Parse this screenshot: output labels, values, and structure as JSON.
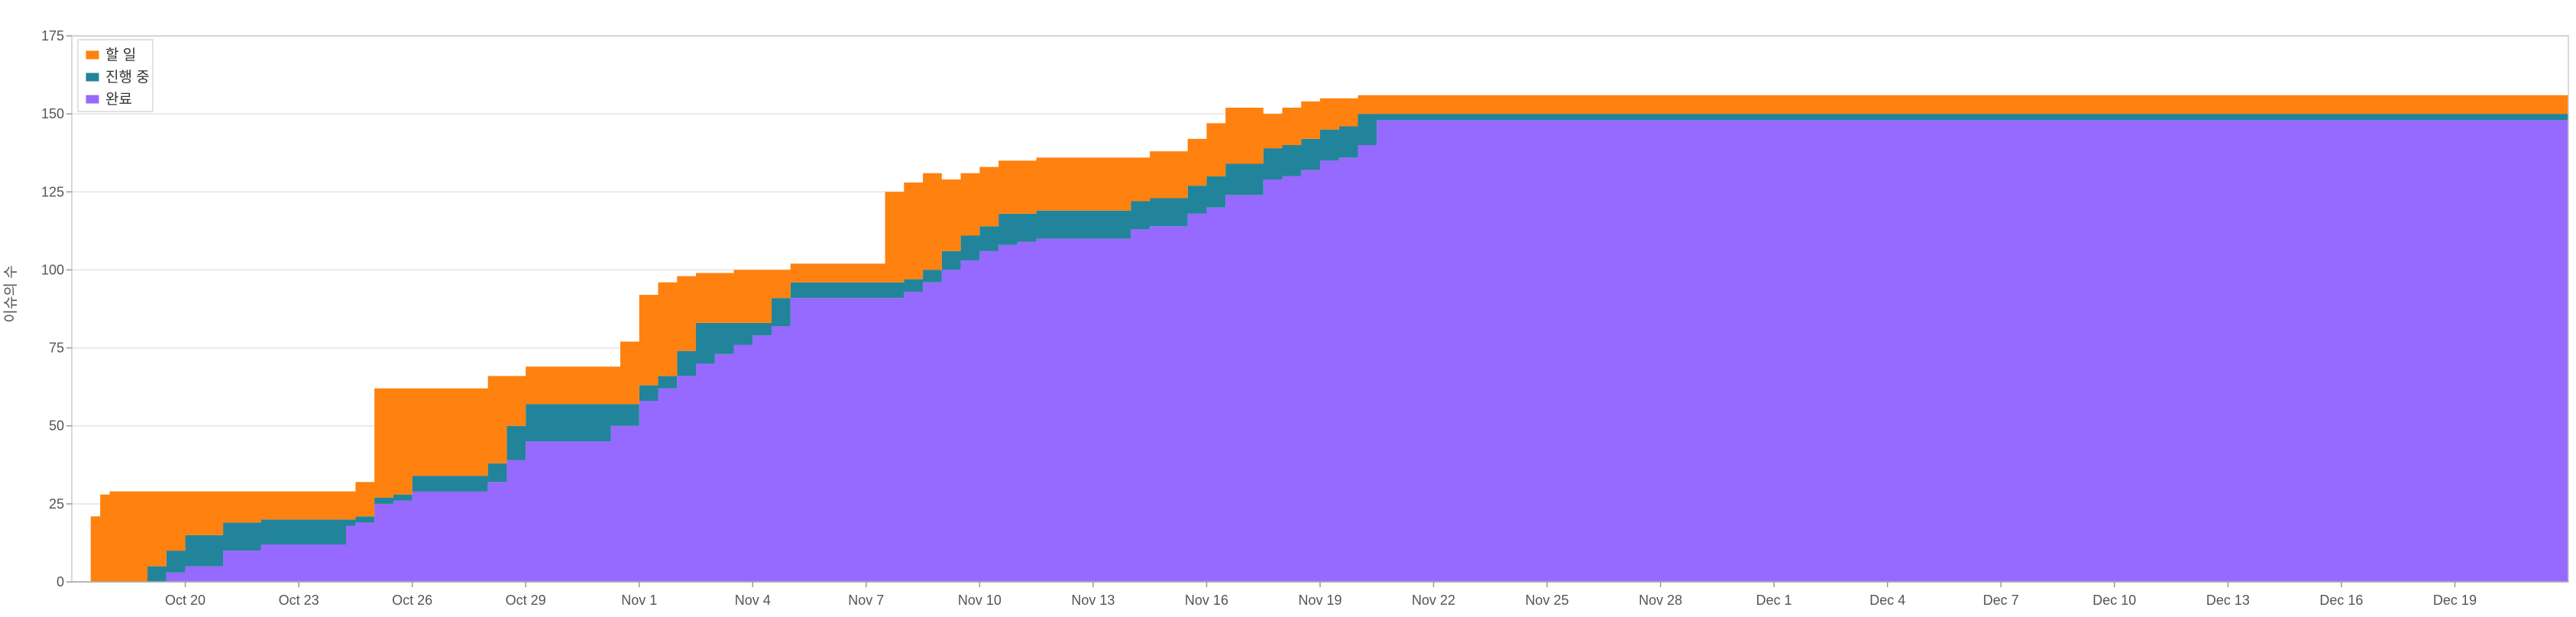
{
  "chart_data": {
    "type": "area",
    "stacked": true,
    "step": true,
    "ylabel": "이슈의 수",
    "ylim": [
      0,
      175
    ],
    "yticks": [
      0,
      25,
      50,
      75,
      100,
      125,
      150,
      175
    ],
    "xlim": [
      "2023-10-17",
      "2023-12-22"
    ],
    "xticks": [
      {
        "date": "2023-10-20",
        "label": "Oct 20"
      },
      {
        "date": "2023-10-23",
        "label": "Oct 23"
      },
      {
        "date": "2023-10-26",
        "label": "Oct 26"
      },
      {
        "date": "2023-10-29",
        "label": "Oct 29"
      },
      {
        "date": "2023-11-01",
        "label": "Nov 1"
      },
      {
        "date": "2023-11-04",
        "label": "Nov 4"
      },
      {
        "date": "2023-11-07",
        "label": "Nov 7"
      },
      {
        "date": "2023-11-10",
        "label": "Nov 10"
      },
      {
        "date": "2023-11-13",
        "label": "Nov 13"
      },
      {
        "date": "2023-11-16",
        "label": "Nov 16"
      },
      {
        "date": "2023-11-19",
        "label": "Nov 19"
      },
      {
        "date": "2023-11-22",
        "label": "Nov 22"
      },
      {
        "date": "2023-11-25",
        "label": "Nov 25"
      },
      {
        "date": "2023-11-28",
        "label": "Nov 28"
      },
      {
        "date": "2023-12-01",
        "label": "Dec 1"
      },
      {
        "date": "2023-12-04",
        "label": "Dec 4"
      },
      {
        "date": "2023-12-07",
        "label": "Dec 7"
      },
      {
        "date": "2023-12-10",
        "label": "Dec 10"
      },
      {
        "date": "2023-12-13",
        "label": "Dec 13"
      },
      {
        "date": "2023-12-16",
        "label": "Dec 16"
      },
      {
        "date": "2023-12-19",
        "label": "Dec 19"
      }
    ],
    "grid": true,
    "legend_position": "top-left",
    "x": [
      "2023-10-17T12:00",
      "2023-10-17T18:00",
      "2023-10-18T00:00",
      "2023-10-18T12:00",
      "2023-10-19T00:00",
      "2023-10-19T12:00",
      "2023-10-20T00:00",
      "2023-10-21T00:00",
      "2023-10-22T00:00",
      "2023-10-24T06:00",
      "2023-10-24T12:00",
      "2023-10-25T00:00",
      "2023-10-25T12:00",
      "2023-10-26T00:00",
      "2023-10-27T12:00",
      "2023-10-28T00:00",
      "2023-10-28T12:00",
      "2023-10-29T00:00",
      "2023-10-31T06:00",
      "2023-10-31T12:00",
      "2023-11-01T00:00",
      "2023-11-01T12:00",
      "2023-11-02T00:00",
      "2023-11-02T12:00",
      "2023-11-03T00:00",
      "2023-11-03T12:00",
      "2023-11-04T00:00",
      "2023-11-04T12:00",
      "2023-11-05T00:00",
      "2023-11-07T12:00",
      "2023-11-08T00:00",
      "2023-11-08T12:00",
      "2023-11-09T00:00",
      "2023-11-09T12:00",
      "2023-11-10T00:00",
      "2023-11-10T12:00",
      "2023-11-11T00:00",
      "2023-11-11T12:00",
      "2023-11-13T12:00",
      "2023-11-14T00:00",
      "2023-11-14T12:00",
      "2023-11-15T00:00",
      "2023-11-15T12:00",
      "2023-11-16T00:00",
      "2023-11-16T12:00",
      "2023-11-17T12:00",
      "2023-11-18T00:00",
      "2023-11-18T12:00",
      "2023-11-19T00:00",
      "2023-11-19T12:00",
      "2023-11-20T00:00",
      "2023-11-20T12:00",
      "2023-12-22T00:00"
    ],
    "series": [
      {
        "name": "완료",
        "color": "#9669FF",
        "values": [
          0,
          0,
          0,
          0,
          0,
          3,
          5,
          10,
          12,
          18,
          19,
          25,
          26,
          29,
          29,
          32,
          39,
          45,
          50,
          50,
          58,
          62,
          66,
          70,
          73,
          76,
          79,
          82,
          91,
          91,
          93,
          96,
          100,
          103,
          106,
          108,
          109,
          110,
          110,
          113,
          114,
          114,
          118,
          120,
          124,
          129,
          130,
          132,
          135,
          136,
          140,
          148,
          148
        ]
      },
      {
        "name": "진행 중",
        "color": "#22849A",
        "values": [
          0,
          0,
          0,
          0,
          5,
          7,
          10,
          9,
          8,
          2,
          2,
          2,
          2,
          5,
          5,
          6,
          11,
          12,
          7,
          7,
          5,
          4,
          8,
          13,
          10,
          7,
          4,
          9,
          5,
          5,
          4,
          4,
          6,
          8,
          8,
          10,
          9,
          9,
          9,
          9,
          9,
          9,
          9,
          10,
          10,
          10,
          10,
          10,
          10,
          10,
          10,
          2,
          2
        ]
      },
      {
        "name": "할 일",
        "color": "#FF810F",
        "values": [
          21,
          28,
          29,
          29,
          24,
          19,
          14,
          10,
          9,
          9,
          11,
          35,
          34,
          28,
          28,
          28,
          16,
          12,
          12,
          20,
          29,
          30,
          24,
          16,
          16,
          17,
          17,
          9,
          6,
          29,
          31,
          31,
          23,
          20,
          19,
          17,
          17,
          17,
          17,
          14,
          15,
          15,
          15,
          17,
          18,
          11,
          12,
          12,
          10,
          9,
          6,
          6,
          6
        ]
      }
    ]
  }
}
